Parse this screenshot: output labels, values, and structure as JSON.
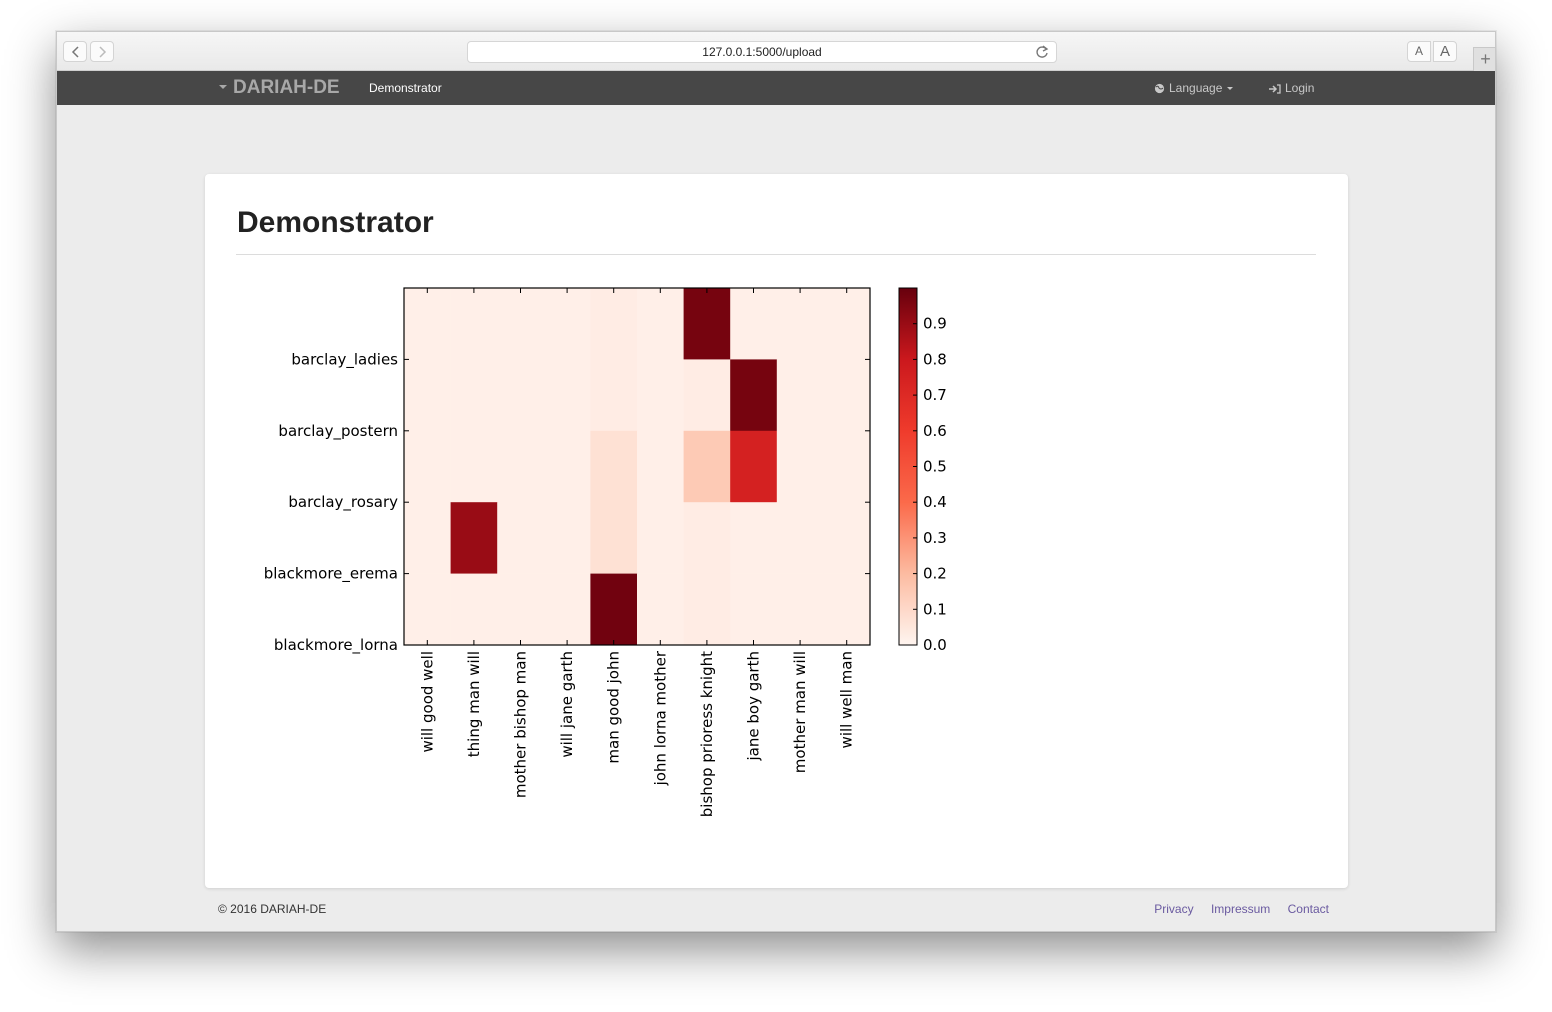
{
  "browser": {
    "url": "127.0.0.1:5000/upload",
    "font_small": "A",
    "font_large": "A",
    "new_tab": "+"
  },
  "navbar": {
    "brand": "DARIAH-DE",
    "active_item": "Demonstrator",
    "language": "Language",
    "login": "Login"
  },
  "page": {
    "title": "Demonstrator"
  },
  "chart_data": {
    "type": "heatmap",
    "rows": [
      "",
      "barclay_ladies",
      "barclay_postern",
      "barclay_rosary",
      "blackmore_erema",
      "blackmore_lorna"
    ],
    "row_tick_labels": [
      "barclay_ladies",
      "barclay_postern",
      "barclay_rosary",
      "blackmore_erema",
      "blackmore_lorna"
    ],
    "columns": [
      "will good well",
      "thing man will",
      "mother bishop man",
      "will jane garth",
      "man good john",
      "john lorna mother",
      "bishop prioress knight",
      "jane boy garth",
      "mother man will",
      "will well man"
    ],
    "values": [
      [
        0.02,
        0.02,
        0.02,
        0.02,
        0.03,
        0.02,
        0.97,
        0.02,
        0.02,
        0.02
      ],
      [
        0.02,
        0.02,
        0.02,
        0.02,
        0.03,
        0.02,
        0.03,
        0.97,
        0.02,
        0.02
      ],
      [
        0.02,
        0.02,
        0.02,
        0.02,
        0.07,
        0.02,
        0.15,
        0.75,
        0.02,
        0.02
      ],
      [
        0.02,
        0.9,
        0.02,
        0.02,
        0.07,
        0.02,
        0.03,
        0.02,
        0.02,
        0.02
      ],
      [
        0.02,
        0.02,
        0.02,
        0.02,
        0.98,
        0.02,
        0.03,
        0.02,
        0.02,
        0.02
      ]
    ],
    "colormap": [
      "#fff5f0",
      "#fcbba1",
      "#fb6a4a",
      "#ef3b2c",
      "#cb181d",
      "#67000d"
    ],
    "colorbar": {
      "range": [
        0.0,
        1.0
      ],
      "ticks": [
        "0.0",
        "0.1",
        "0.2",
        "0.3",
        "0.4",
        "0.5",
        "0.6",
        "0.7",
        "0.8",
        "0.9"
      ]
    }
  },
  "footer": {
    "copyright": "© 2016 DARIAH-DE",
    "links": [
      "Privacy",
      "Impressum",
      "Contact"
    ]
  }
}
